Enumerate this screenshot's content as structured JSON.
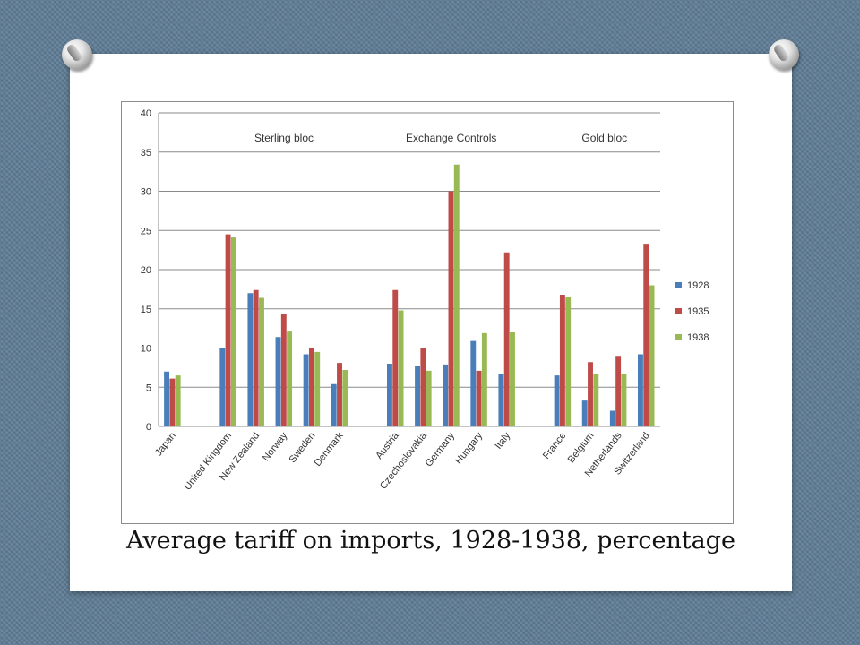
{
  "caption": "Average tariff on imports, 1928-1938, percentage",
  "chart_data": {
    "type": "bar",
    "title": "",
    "xlabel": "",
    "ylabel": "",
    "ylim": [
      0,
      40
    ],
    "yticks": [
      0,
      5,
      10,
      15,
      20,
      25,
      30,
      35,
      40
    ],
    "grid": true,
    "legend_position": "right",
    "groups": [
      {
        "label": "Sterling bloc",
        "categories": [
          "United Kingdom",
          "New Zealand",
          "Norway",
          "Sweden",
          "Denmark"
        ]
      },
      {
        "label": "Exchange Controls",
        "categories": [
          "Austria",
          "Czechoslovakia",
          "Germany",
          "Hungary",
          "Italy"
        ]
      },
      {
        "label": "Gold bloc",
        "categories": [
          "France",
          "Belgium",
          "Netherlands",
          "Switzerland"
        ]
      }
    ],
    "categories": [
      "Japan",
      "",
      "United Kingdom",
      "New Zealand",
      "Norway",
      "Sweden",
      "Denmark",
      "",
      "Austria",
      "Czechoslovakia",
      "Germany",
      "Hungary",
      "Italy",
      "",
      "France",
      "Belgium",
      "Netherlands",
      "Switzerland"
    ],
    "series": [
      {
        "name": "1928",
        "color": "#4a7ebb",
        "values": [
          7.0,
          null,
          10.0,
          17.0,
          11.4,
          9.2,
          5.4,
          null,
          8.0,
          7.7,
          7.9,
          10.9,
          6.7,
          null,
          6.5,
          3.3,
          2.0,
          9.2
        ]
      },
      {
        "name": "1935",
        "color": "#be4b48",
        "values": [
          6.1,
          null,
          24.5,
          17.4,
          14.4,
          10.0,
          8.1,
          null,
          17.4,
          10.0,
          30.0,
          7.1,
          22.2,
          null,
          16.8,
          8.2,
          9.0,
          23.3
        ]
      },
      {
        "name": "1938",
        "color": "#98b954",
        "values": [
          6.5,
          null,
          24.1,
          16.4,
          12.1,
          9.5,
          7.2,
          null,
          14.8,
          7.1,
          33.4,
          11.9,
          12.0,
          null,
          16.5,
          6.7,
          6.7,
          18.0
        ]
      }
    ]
  }
}
